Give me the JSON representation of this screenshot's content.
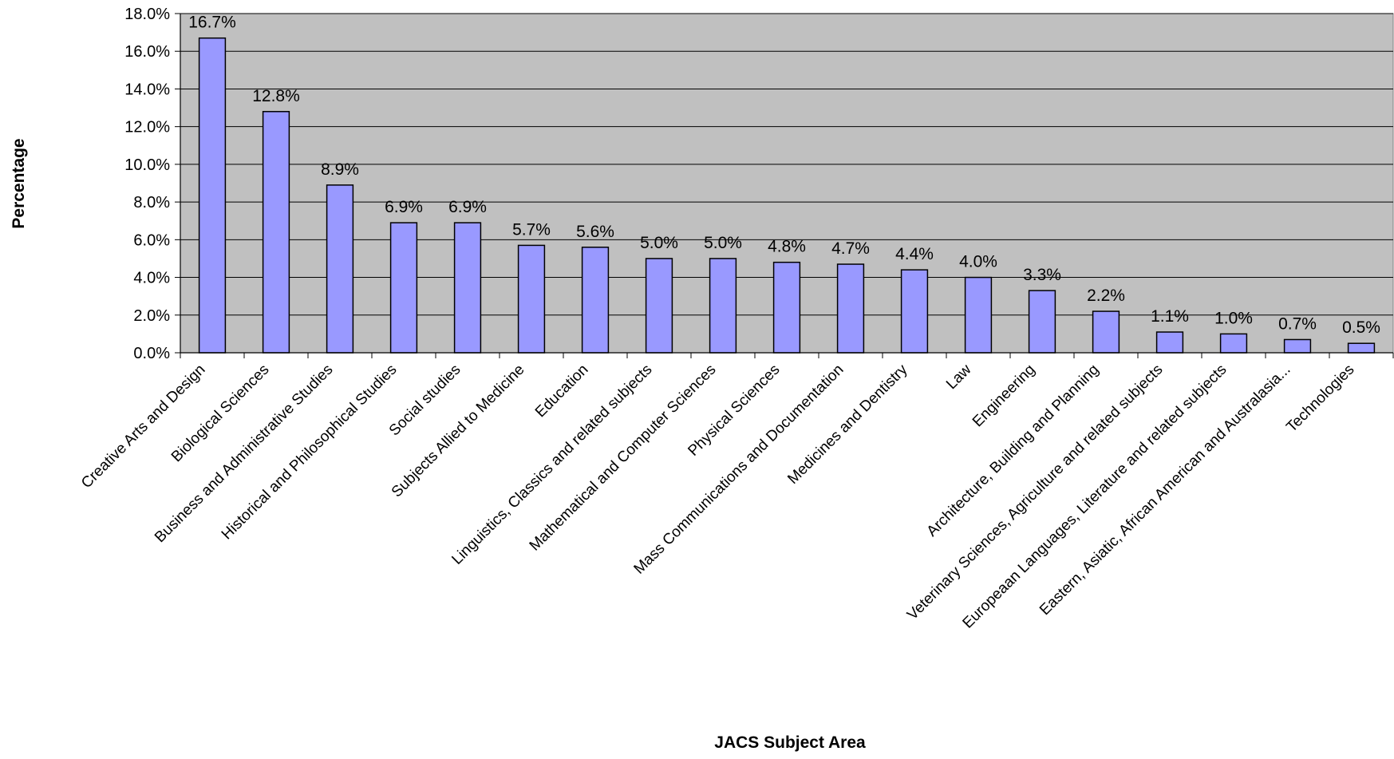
{
  "chart_data": {
    "type": "bar",
    "title": "",
    "xlabel": "JACS Subject Area",
    "ylabel": "Percentage",
    "ylim": [
      0,
      18
    ],
    "ytick_step": 2,
    "ytick_labels": [
      "0.0%",
      "2.0%",
      "4.0%",
      "6.0%",
      "8.0%",
      "10.0%",
      "12.0%",
      "14.0%",
      "16.0%",
      "18.0%"
    ],
    "grid": true,
    "legend": "none",
    "colors": {
      "bar_fill": "#9999ff",
      "bar_stroke": "#000000",
      "plot_background": "#c0c0c0",
      "gridline": "#000000"
    },
    "categories": [
      "Creative Arts and Design",
      "Biological Sciences",
      "Business and Administrative Studies",
      "Historical and Philosophical Studies",
      "Social studies",
      "Subjects Allied to Medicine",
      "Education",
      "Linguistics, Classics and related subjects",
      "Mathematical and Computer Sciences",
      "Physical Sciences",
      "Mass Communications and Documentation",
      "Medicines and Dentistry",
      "Law",
      "Engineering",
      "Architecture, Building and Planning",
      "Veterinary Sciences, Agriculture and related subjects",
      "Europeaan Languages, Literature and related subjects",
      "Eastern, Asiatic, African American and Australasia...",
      "Technologies"
    ],
    "values": [
      16.7,
      12.8,
      8.9,
      6.9,
      6.9,
      5.7,
      5.6,
      5.0,
      5.0,
      4.8,
      4.7,
      4.4,
      4.0,
      3.3,
      2.2,
      1.1,
      1.0,
      0.7,
      0.5
    ],
    "data_labels": [
      "16.7%",
      "12.8%",
      "8.9%",
      "6.9%",
      "6.9%",
      "5.7%",
      "5.6%",
      "5.0%",
      "5.0%",
      "4.8%",
      "4.7%",
      "4.4%",
      "4.0%",
      "3.3%",
      "2.2%",
      "1.1%",
      "1.0%",
      "0.7%",
      "0.5%"
    ]
  }
}
